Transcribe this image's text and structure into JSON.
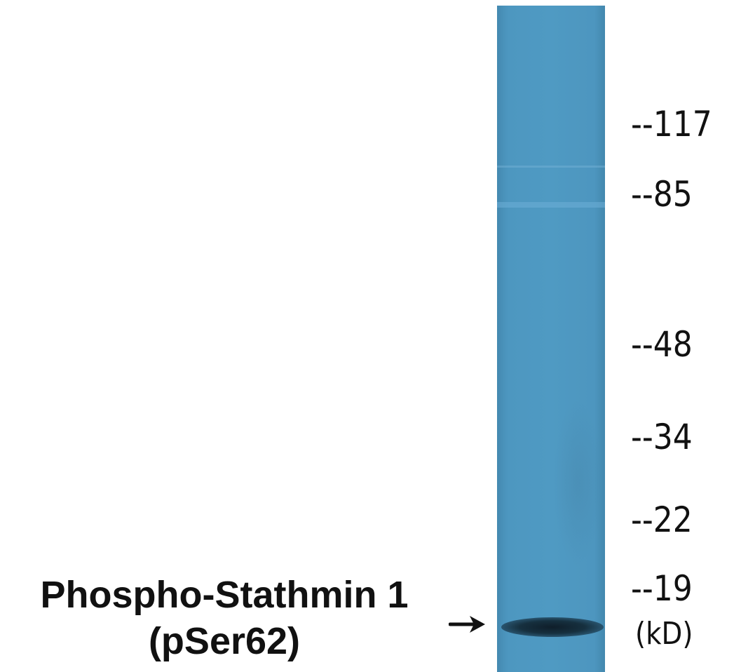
{
  "protein": {
    "line1": "Phospho-Stathmin 1",
    "line2": "(pSer62)"
  },
  "markers": [
    {
      "label": "--117"
    },
    {
      "label": "--85"
    },
    {
      "label": "--48"
    },
    {
      "label": "--34"
    },
    {
      "label": "--22"
    },
    {
      "label": "--19"
    }
  ],
  "unit_label": "(kD)",
  "colors": {
    "lane": "#4f9ac3",
    "band": "#0f1e2a",
    "text": "#111111"
  },
  "icons": {
    "band_pointer": "arrow-right-icon"
  }
}
